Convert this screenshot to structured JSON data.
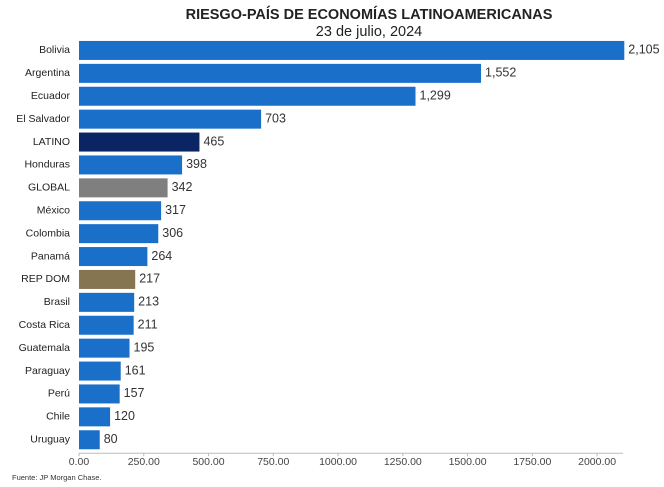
{
  "chart_data": {
    "type": "hbar",
    "title": "RIESGO-PAÍS DE ECONOMÍAS LATINOAMERICANAS",
    "subtitle": "23 de julio, 2024",
    "source": "Fuente: JP Morgan Chase.",
    "categories": [
      "Bolivia",
      "Argentina",
      "Ecuador",
      "El Salvador",
      "LATINO",
      "Honduras",
      "GLOBAL",
      "México",
      "Colombia",
      "Panamá",
      "REP DOM",
      "Brasil",
      "Costa Rica",
      "Guatemala",
      "Paraguay",
      "Perú",
      "Chile",
      "Uruguay"
    ],
    "values": [
      2105,
      1552,
      1299,
      703,
      465,
      398,
      342,
      317,
      306,
      264,
      217,
      213,
      211,
      195,
      161,
      157,
      120,
      80
    ],
    "value_labels": [
      "2,105",
      "1,552",
      "1,299",
      "703",
      "465",
      "398",
      "342",
      "317",
      "306",
      "264",
      "217",
      "213",
      "211",
      "195",
      "161",
      "157",
      "120",
      "80"
    ],
    "colors": [
      "#1a6fc9",
      "#1a6fc9",
      "#1a6fc9",
      "#1a6fc9",
      "#0b2463",
      "#1a6fc9",
      "#7f7f7f",
      "#1a6fc9",
      "#1a6fc9",
      "#1a6fc9",
      "#857550",
      "#1a6fc9",
      "#1a6fc9",
      "#1a6fc9",
      "#1a6fc9",
      "#1a6fc9",
      "#1a6fc9",
      "#1a6fc9"
    ],
    "xlim": [
      0,
      2100
    ],
    "xticks": [
      {
        "value": 0,
        "label": "0.00"
      },
      {
        "value": 250,
        "label": "250.00"
      },
      {
        "value": 500,
        "label": "500.00"
      },
      {
        "value": 750,
        "label": "750.00"
      },
      {
        "value": 1000,
        "label": "1000.00"
      },
      {
        "value": 1250,
        "label": "1250.00"
      },
      {
        "value": 1500,
        "label": "1500.00"
      },
      {
        "value": 1750,
        "label": "1750.00"
      },
      {
        "value": 2000,
        "label": "2000.00"
      }
    ]
  }
}
